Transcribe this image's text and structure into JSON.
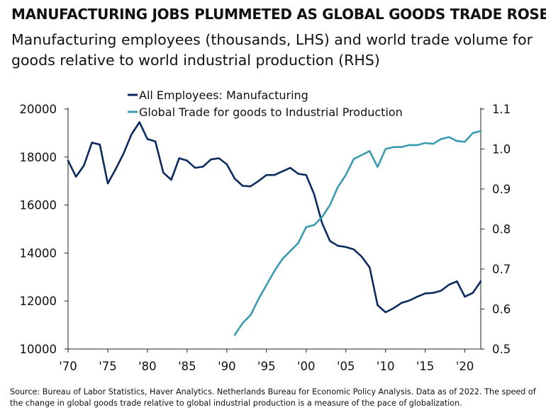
{
  "title": "MANUFACTURING JOBS PLUMMETED AS GLOBAL GOODS TRADE ROSE",
  "subtitle": "Manufacturing employees (thousands, LHS) and world trade volume for goods relative to world industrial production (RHS)",
  "source": "Source: Bureau of Labor Statistics, Haver Analytics. Netherlands Bureau for Economic Policy Analysis. Data as of 2022.  The speed of the change in global goods trade relative to global industrial production is a measure of the pace of globalization.",
  "colors": {
    "manufacturing": "#0b2b5e",
    "trade": "#3a9bb0"
  },
  "chart_data": {
    "type": "line",
    "x_ticks": [
      1970,
      1975,
      1980,
      1985,
      1990,
      1995,
      2000,
      2005,
      2010,
      2015,
      2020
    ],
    "x_tick_labels": [
      "'70",
      "'75",
      "'80",
      "'85",
      "'90",
      "'95",
      "'00",
      "'05",
      "'10",
      "'15",
      "'20"
    ],
    "xlim": [
      1970,
      2022
    ],
    "y_left": {
      "lim": [
        10000,
        20000
      ],
      "ticks": [
        10000,
        12000,
        14000,
        16000,
        18000,
        20000
      ],
      "tick_labels": [
        "10000",
        "12000",
        "14000",
        "16000",
        "18000",
        "20000"
      ]
    },
    "y_right": {
      "lim": [
        0.5,
        1.1
      ],
      "ticks": [
        0.5,
        0.6,
        0.7,
        0.8,
        0.9,
        1.0,
        1.1
      ],
      "tick_labels": [
        "0.5",
        "0.6",
        "0.7",
        "0.8",
        "0.9",
        "1.0",
        "1.1"
      ]
    },
    "grid": false,
    "legend_position": "top-center",
    "series": [
      {
        "name": "All Employees: Manufacturing",
        "axis": "left",
        "x": [
          1970,
          1971,
          1972,
          1973,
          1974,
          1975,
          1976,
          1977,
          1978,
          1979,
          1980,
          1981,
          1982,
          1983,
          1984,
          1985,
          1986,
          1987,
          1988,
          1989,
          1990,
          1991,
          1992,
          1993,
          1994,
          1995,
          1996,
          1997,
          1998,
          1999,
          2000,
          2001,
          2002,
          2003,
          2004,
          2005,
          2006,
          2007,
          2008,
          2009,
          2010,
          2011,
          2012,
          2013,
          2014,
          2015,
          2016,
          2017,
          2018,
          2019,
          2020,
          2021,
          2022
        ],
        "values": [
          17850,
          17180,
          17650,
          18600,
          18520,
          16900,
          17500,
          18150,
          18950,
          19450,
          18750,
          18650,
          17350,
          17050,
          17950,
          17850,
          17550,
          17600,
          17900,
          17950,
          17700,
          17100,
          16800,
          16780,
          17000,
          17250,
          17250,
          17400,
          17550,
          17300,
          17250,
          16450,
          15250,
          14500,
          14300,
          14250,
          14150,
          13850,
          13400,
          11830,
          11530,
          11700,
          11920,
          12020,
          12180,
          12320,
          12340,
          12430,
          12680,
          12820,
          12180,
          12340,
          12820
        ]
      },
      {
        "name": "Global Trade for goods to Industrial Production",
        "axis": "right",
        "x": [
          1991,
          1992,
          1993,
          1994,
          1995,
          1996,
          1997,
          1998,
          1999,
          2000,
          2001,
          2002,
          2003,
          2004,
          2005,
          2006,
          2007,
          2008,
          2009,
          2010,
          2011,
          2012,
          2013,
          2014,
          2015,
          2016,
          2017,
          2018,
          2019,
          2020,
          2021,
          2022
        ],
        "values": [
          0.535,
          0.565,
          0.585,
          0.625,
          0.66,
          0.695,
          0.725,
          0.745,
          0.765,
          0.805,
          0.81,
          0.83,
          0.86,
          0.905,
          0.935,
          0.975,
          0.985,
          0.995,
          0.955,
          1.0,
          1.005,
          1.005,
          1.01,
          1.01,
          1.015,
          1.013,
          1.025,
          1.03,
          1.02,
          1.018,
          1.04,
          1.045
        ]
      }
    ]
  }
}
